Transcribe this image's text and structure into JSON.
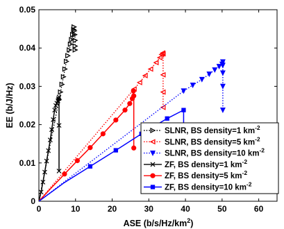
{
  "chart_data": {
    "type": "line",
    "xlabel": "ASE (b/s/Hz/km²)",
    "ylabel": "EE (b/J/Hz)",
    "xlim": [
      0,
      65
    ],
    "ylim": [
      0,
      0.05
    ],
    "x_ticks": [
      "0",
      "10",
      "20",
      "30",
      "40",
      "50",
      "60"
    ],
    "y_ticks": [
      "0",
      "0.01",
      "0.02",
      "0.03",
      "0.04",
      "0.05"
    ],
    "legend_position": "bottom-right",
    "series": [
      {
        "name": "SLNR, BS density=1 km",
        "superscript": "-2",
        "color": "#000000",
        "marker": "triangle-right",
        "line": "dotted",
        "x": [
          0,
          5.5,
          5.9,
          6.3,
          6.7,
          7.1,
          7.5,
          7.9,
          8.3,
          8.6,
          8.9,
          9.2,
          9.5,
          9.6,
          9.7,
          9.8,
          9.9,
          9.9,
          9.9
        ],
        "y": [
          0,
          0.0265,
          0.0285,
          0.0305,
          0.0325,
          0.0345,
          0.0365,
          0.038,
          0.0395,
          0.041,
          0.0422,
          0.0435,
          0.0448,
          0.0455,
          0.0445,
          0.0435,
          0.042,
          0.0405,
          0.0395
        ]
      },
      {
        "name": "SLNR, BS density=5 km",
        "superscript": "-2",
        "color": "#ff0000",
        "marker": "triangle-left",
        "line": "dotted",
        "x": [
          0,
          26,
          27.5,
          29,
          30.5,
          32,
          33,
          33.5,
          33.8,
          33.9,
          33.9,
          33.9,
          33.9
        ],
        "y": [
          0,
          0.0293,
          0.031,
          0.0328,
          0.0345,
          0.0362,
          0.0375,
          0.0383,
          0.0387,
          0.0385,
          0.033,
          0.0285,
          0.0245
        ],
        "marker_indices": [
          1,
          2,
          3,
          4,
          5,
          6,
          7,
          8,
          9,
          10,
          11,
          12
        ]
      },
      {
        "name": "SLNR, BS density=10 km",
        "superscript": "-2",
        "color": "#0000ff",
        "marker": "triangle-down",
        "line": "dotted",
        "x": [
          0,
          39.5,
          42,
          44.5,
          46.5,
          48,
          49.2,
          50,
          50.2,
          50.2,
          50.2,
          50.2,
          50.2
        ],
        "y": [
          0,
          0.0288,
          0.0303,
          0.0318,
          0.0332,
          0.0343,
          0.0352,
          0.0358,
          0.0364,
          0.0355,
          0.0335,
          0.03,
          0.0238
        ],
        "marker_indices": [
          1,
          2,
          3,
          4,
          5,
          6,
          7,
          8,
          9,
          10,
          11,
          12
        ]
      },
      {
        "name": "ZF, BS density=1 km",
        "superscript": "-2",
        "color": "#000000",
        "marker": "x",
        "line": "solid",
        "x": [
          0,
          0.6,
          1.1,
          1.6,
          2.1,
          2.6,
          3.1,
          3.5,
          3.9,
          4.3,
          4.6,
          4.9,
          5.2,
          5.4,
          5.5,
          5.5,
          5.5
        ],
        "y": [
          0,
          0.0024,
          0.005,
          0.0076,
          0.0105,
          0.0132,
          0.016,
          0.0187,
          0.0213,
          0.0238,
          0.025,
          0.0256,
          0.0262,
          0.0268,
          0.0272,
          0.0198,
          0.0079
        ]
      },
      {
        "name": "ZF, BS density=5 km",
        "superscript": "-2",
        "color": "#ff0000",
        "marker": "circle",
        "line": "solid",
        "x": [
          0,
          3.5,
          7,
          10.5,
          14,
          17.5,
          21,
          23.5,
          24.8,
          25.5,
          25.8,
          25.9,
          25.9
        ],
        "y": [
          0,
          0.0036,
          0.0071,
          0.0106,
          0.014,
          0.0176,
          0.0212,
          0.0238,
          0.0255,
          0.0268,
          0.0288,
          0.0275,
          0.0139
        ],
        "marker_indices": [
          2,
          3,
          4,
          5,
          6,
          7,
          8,
          9,
          10,
          11,
          12
        ]
      },
      {
        "name": "ZF, BS density=10 km",
        "superscript": "-2",
        "color": "#0000ff",
        "marker": "square",
        "line": "solid",
        "x": [
          0,
          7,
          14,
          21,
          28,
          35,
          39.5,
          39.5
        ],
        "y": [
          0,
          0.0049,
          0.0091,
          0.0133,
          0.0176,
          0.0216,
          0.0238,
          0.014
        ],
        "marker_indices": [
          2,
          3,
          4,
          5,
          6,
          7
        ]
      }
    ]
  }
}
